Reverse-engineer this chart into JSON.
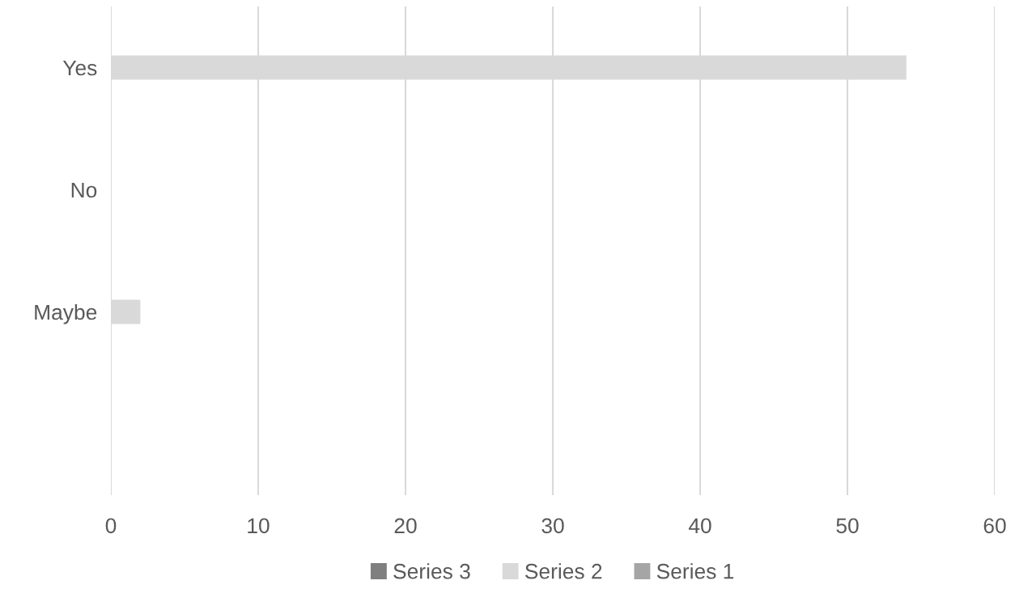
{
  "chart_data": {
    "type": "bar",
    "orientation": "horizontal",
    "categories": [
      "Yes",
      "No",
      "Maybe",
      null
    ],
    "series": [
      {
        "name": "Series 1",
        "color": "#a5a5a5",
        "values": [
          null,
          null,
          null,
          null
        ]
      },
      {
        "name": "Series 2",
        "color": "#d9d9d9",
        "values": [
          54,
          null,
          2,
          null
        ]
      },
      {
        "name": "Series 3",
        "color": "#7f7f7f",
        "values": [
          null,
          null,
          null,
          null
        ]
      }
    ],
    "xlim": [
      0,
      60
    ],
    "xticks": [
      0,
      10,
      20,
      30,
      40,
      50,
      60
    ],
    "grid": "x",
    "legend": "bottom"
  }
}
